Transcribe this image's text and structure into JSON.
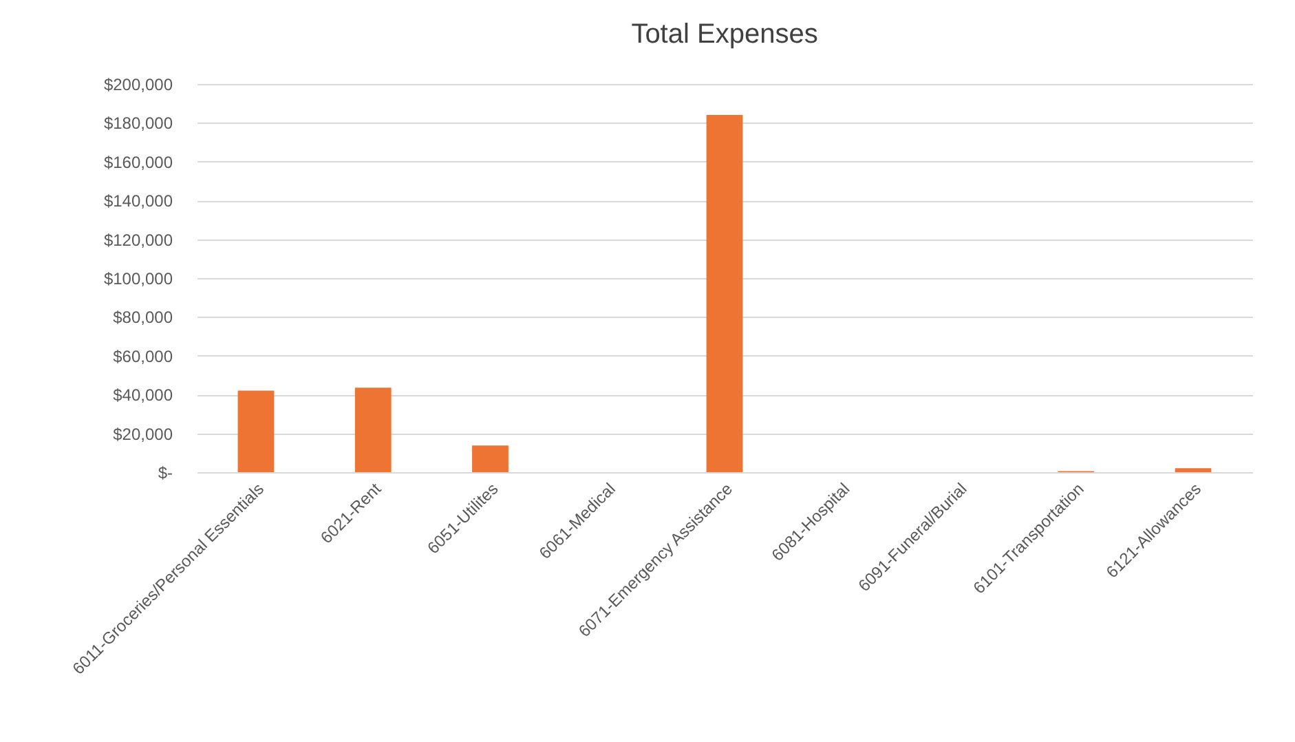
{
  "chart_data": {
    "type": "bar",
    "title": "Total Expenses",
    "categories": [
      "6011-Groceries/Personal Essentials",
      "6021-Rent",
      "6051-Utilites",
      "6061-Medical",
      "6071-Emergency Assistance",
      "6081-Hospital",
      "6091-Funeral/Burial",
      "6101-Transportation",
      "6121-Allowances"
    ],
    "values": [
      42000,
      43500,
      13700,
      0,
      184000,
      0,
      0,
      500,
      2000
    ],
    "color": "#ed7432",
    "ylim": [
      0,
      200000
    ],
    "yticks": [
      {
        "value": 0,
        "label": "$-"
      },
      {
        "value": 20000,
        "label": "$20,000"
      },
      {
        "value": 40000,
        "label": "$40,000"
      },
      {
        "value": 60000,
        "label": "$60,000"
      },
      {
        "value": 80000,
        "label": "$80,000"
      },
      {
        "value": 100000,
        "label": "$100,000"
      },
      {
        "value": 120000,
        "label": "$120,000"
      },
      {
        "value": 140000,
        "label": "$140,000"
      },
      {
        "value": 160000,
        "label": "$160,000"
      },
      {
        "value": 180000,
        "label": "$180,000"
      },
      {
        "value": 200000,
        "label": "$200,000"
      }
    ],
    "grid": true
  }
}
